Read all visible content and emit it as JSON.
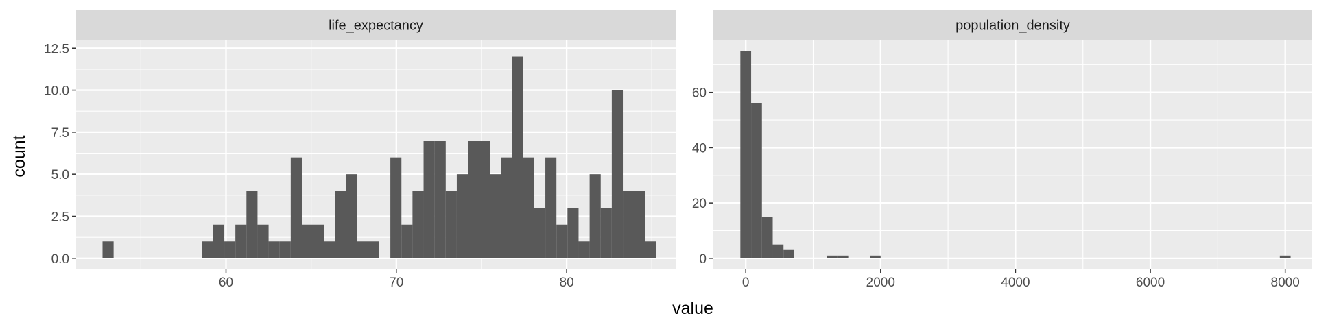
{
  "chart_data": [
    {
      "type": "bar",
      "facet": "life_expectancy",
      "bin_width": 0.65,
      "bin_starts": [
        52.75,
        53.4,
        54.05,
        54.7,
        55.35,
        56,
        56.65,
        57.3,
        57.95,
        58.6,
        59.25,
        59.9,
        60.55,
        61.2,
        61.85,
        62.5,
        63.15,
        63.8,
        64.45,
        65.1,
        65.75,
        66.4,
        67.05,
        67.7,
        68.35,
        69,
        69.65,
        70.3,
        70.95,
        71.6,
        72.25,
        72.9,
        73.55,
        74.2,
        74.85,
        75.5,
        76.15,
        76.8,
        77.45,
        78.1,
        78.75,
        79.4,
        80.05,
        80.7,
        81.35,
        82,
        82.65,
        83.3,
        83.95,
        84.6
      ],
      "counts": [
        1,
        0,
        0,
        0,
        0,
        0,
        0,
        0,
        0,
        1,
        2,
        1,
        2,
        4,
        2,
        1,
        1,
        6,
        2,
        2,
        1,
        4,
        5,
        1,
        1,
        0,
        6,
        2,
        4,
        7,
        7,
        4,
        5,
        7,
        7,
        5,
        6,
        12,
        6,
        3,
        6,
        2,
        3,
        1,
        5,
        3,
        10,
        4,
        4,
        1
      ],
      "x_ticks": [
        60,
        70,
        80
      ],
      "xlim": [
        51.2,
        86.4
      ],
      "y_ticks": [
        0,
        2.5,
        5,
        7.5,
        10,
        12.5
      ],
      "y_tick_labels": [
        "0.0",
        "2.5",
        "5.0",
        "7.5",
        "10.0",
        "12.5"
      ],
      "ylim": [
        -0.62,
        13.0
      ]
    },
    {
      "type": "bar",
      "facet": "population_density",
      "bin_width": 160,
      "bin_starts": [
        -80,
        80,
        240,
        400,
        560,
        1200,
        1360,
        1840,
        7920
      ],
      "counts": [
        75,
        56,
        15,
        5,
        3,
        1,
        1,
        1,
        1
      ],
      "x_ticks": [
        0,
        2000,
        4000,
        6000,
        8000
      ],
      "x_tick_labels": [
        "0",
        "2000",
        "4000",
        "6000",
        "8000"
      ],
      "xlim": [
        -480,
        8400
      ],
      "y_ticks": [
        0,
        20,
        40,
        60
      ],
      "y_tick_labels": [
        "0",
        "20",
        "40",
        "60"
      ],
      "ylim": [
        -3.75,
        79
      ]
    }
  ],
  "axes": {
    "xlabel": "value",
    "ylabel": "count"
  },
  "colors": {
    "bar": "#595959",
    "panel": "#ebebeb",
    "strip": "#d9d9d9",
    "grid_major": "#ffffff",
    "tick": "#333333"
  }
}
